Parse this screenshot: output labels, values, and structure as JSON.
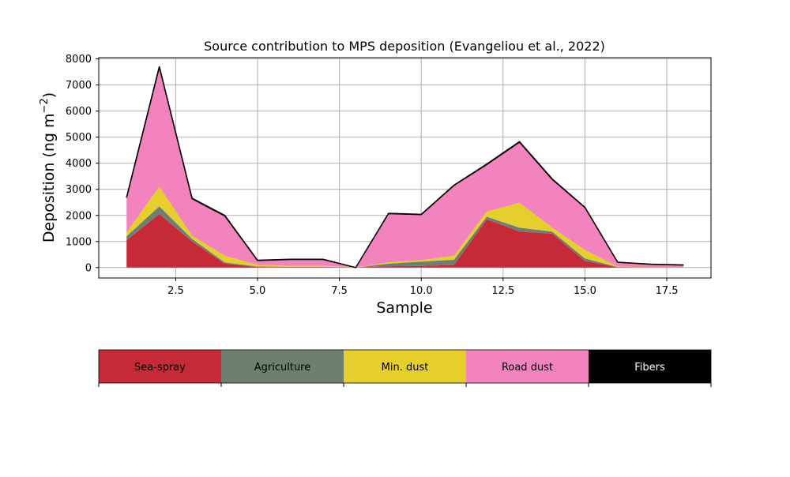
{
  "chart_data": {
    "type": "area",
    "stacked": true,
    "title": "Source contribution to MPS deposition (Evangeliou et al., 2022)",
    "xlabel": "Sample",
    "ylabel": "Deposition (ng m",
    "ylabel_exponent": "−2",
    "ylabel_close": ")",
    "xlim": [
      0.15,
      18.85
    ],
    "ylim": [
      -400,
      8050
    ],
    "x_ticks": [
      2.5,
      5.0,
      7.5,
      10.0,
      12.5,
      15.0,
      17.5
    ],
    "x_tick_labels": [
      "2.5",
      "5.0",
      "7.5",
      "10.0",
      "12.5",
      "15.0",
      "17.5"
    ],
    "y_ticks": [
      0,
      1000,
      2000,
      3000,
      4000,
      5000,
      6000,
      7000,
      8000
    ],
    "y_tick_labels": [
      "0",
      "1000",
      "2000",
      "3000",
      "4000",
      "5000",
      "6000",
      "7000",
      "8000"
    ],
    "grid": true,
    "x": [
      1,
      2,
      3,
      4,
      5,
      6,
      7,
      8,
      9,
      10,
      11,
      12,
      13,
      14,
      15,
      16,
      17,
      18
    ],
    "series": [
      {
        "name": "Sea-spray",
        "color": "#c62a37",
        "values": [
          1050,
          2050,
          1000,
          150,
          20,
          10,
          10,
          0,
          50,
          60,
          100,
          1850,
          1380,
          1300,
          250,
          10,
          5,
          5
        ]
      },
      {
        "name": "Agriculture",
        "color": "#6f7f6f",
        "values": [
          150,
          300,
          100,
          50,
          20,
          20,
          20,
          0,
          100,
          170,
          200,
          100,
          150,
          80,
          100,
          10,
          5,
          5
        ]
      },
      {
        "name": "Min. dust",
        "color": "#e6cf2c",
        "values": [
          150,
          750,
          120,
          250,
          60,
          40,
          40,
          0,
          50,
          50,
          150,
          200,
          950,
          150,
          320,
          10,
          5,
          5
        ]
      },
      {
        "name": "Road dust",
        "color": "#f383bd",
        "values": [
          1330,
          4590,
          1420,
          1530,
          170,
          240,
          240,
          0,
          1870,
          1750,
          2700,
          1800,
          2330,
          1850,
          1630,
          170,
          110,
          80
        ]
      },
      {
        "name": "Fibers",
        "color": "#000000",
        "values": [
          20,
          20,
          20,
          20,
          10,
          10,
          10,
          0,
          10,
          10,
          10,
          20,
          20,
          20,
          10,
          5,
          5,
          5
        ]
      }
    ]
  }
}
